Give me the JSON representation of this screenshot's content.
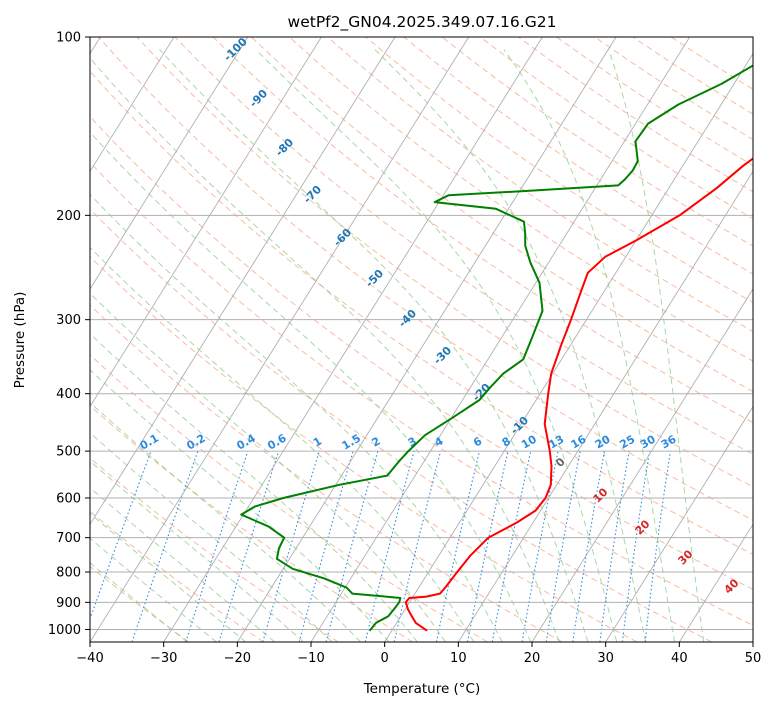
{
  "chart_data": {
    "type": "skew-t",
    "title": "wetPf2_GN04.2025.349.07.16.G21",
    "xlabel": "Temperature (°C)",
    "ylabel": "Pressure (hPa)",
    "xlim": [
      -40,
      50
    ],
    "ylim": [
      1050,
      100
    ],
    "x_ticks": [
      "−40",
      "−30",
      "−20",
      "−10",
      "0",
      "10",
      "20",
      "30",
      "40",
      "50"
    ],
    "y_ticks": [
      {
        "p": 1000,
        "label": "1000"
      },
      {
        "p": 900,
        "label": "900"
      },
      {
        "p": 800,
        "label": "800"
      },
      {
        "p": 700,
        "label": "700"
      },
      {
        "p": 600,
        "label": "600"
      },
      {
        "p": 500,
        "label": "500"
      },
      {
        "p": 400,
        "label": "400"
      },
      {
        "p": 300,
        "label": "300"
      },
      {
        "p": 200,
        "label": "200"
      },
      {
        "p": 100,
        "label": "100"
      }
    ],
    "grid": true,
    "colors": {
      "temperature": "#ff0000",
      "dewpoint": "#008000",
      "isotherm": "#b0b0b0",
      "dry_adiabat": "#f4a582",
      "moist_adiabat": "#8cc98c",
      "mixing_ratio": "#2c8be0",
      "dry_label": "#1f77b4",
      "moist_label": "#d62728"
    },
    "series": [
      {
        "key": "temperature",
        "points": [
          [
            1005,
            4.8
          ],
          [
            975,
            2.6
          ],
          [
            950,
            1.5
          ],
          [
            925,
            0.4
          ],
          [
            900,
            -0.5
          ],
          [
            885,
            -0.4
          ],
          [
            880,
            1.8
          ],
          [
            870,
            3.4
          ],
          [
            850,
            3.6
          ],
          [
            800,
            3.9
          ],
          [
            750,
            4.3
          ],
          [
            700,
            5.2
          ],
          [
            660,
            7.8
          ],
          [
            630,
            9.3
          ],
          [
            600,
            9.6
          ],
          [
            570,
            9.2
          ],
          [
            530,
            7.7
          ],
          [
            500,
            6.2
          ],
          [
            450,
            3.2
          ],
          [
            400,
            1.1
          ],
          [
            370,
            -0.2
          ],
          [
            330,
            -1.3
          ],
          [
            300,
            -2.1
          ],
          [
            270,
            -3.1
          ],
          [
            250,
            -3.8
          ],
          [
            235,
            -2.8
          ],
          [
            220,
            0.1
          ],
          [
            200,
            3.8
          ],
          [
            180,
            6.5
          ],
          [
            165,
            8.2
          ],
          [
            150,
            10.6
          ],
          [
            135,
            14.8
          ],
          [
            125,
            17.2
          ],
          [
            115,
            17.8
          ],
          [
            108,
            19.5
          ],
          [
            100,
            21.8
          ]
        ]
      },
      {
        "key": "dewpoint",
        "points": [
          [
            1005,
            -3.0
          ],
          [
            975,
            -2.8
          ],
          [
            950,
            -1.7
          ],
          [
            920,
            -1.5
          ],
          [
            900,
            -1.4
          ],
          [
            885,
            -1.6
          ],
          [
            880,
            -3.7
          ],
          [
            870,
            -8.5
          ],
          [
            850,
            -9.8
          ],
          [
            820,
            -13.6
          ],
          [
            790,
            -18.7
          ],
          [
            760,
            -21.7
          ],
          [
            730,
            -22.3
          ],
          [
            700,
            -22.5
          ],
          [
            670,
            -25.6
          ],
          [
            640,
            -30.3
          ],
          [
            620,
            -29.1
          ],
          [
            600,
            -26.0
          ],
          [
            570,
            -19.5
          ],
          [
            550,
            -13.8
          ],
          [
            520,
            -13.4
          ],
          [
            500,
            -13.0
          ],
          [
            470,
            -12.1
          ],
          [
            440,
            -9.9
          ],
          [
            410,
            -7.7
          ],
          [
            390,
            -7.3
          ],
          [
            370,
            -6.7
          ],
          [
            350,
            -5.2
          ],
          [
            320,
            -5.9
          ],
          [
            290,
            -6.7
          ],
          [
            260,
            -9.5
          ],
          [
            240,
            -12.5
          ],
          [
            225,
            -14.6
          ],
          [
            215,
            -15.6
          ],
          [
            205,
            -16.8
          ],
          [
            195,
            -21.7
          ],
          [
            190,
            -30.6
          ],
          [
            185,
            -29.3
          ],
          [
            182,
            -19.5
          ],
          [
            178,
            -7.1
          ],
          [
            174,
            -6.7
          ],
          [
            168,
            -6.4
          ],
          [
            162,
            -6.5
          ],
          [
            150,
            -8.5
          ],
          [
            140,
            -8.3
          ],
          [
            130,
            -5.8
          ],
          [
            120,
            -1.7
          ],
          [
            110,
            1.6
          ],
          [
            100,
            4.2
          ]
        ]
      }
    ],
    "dry_adiabat_labels": [
      "-100",
      "-90",
      "-80",
      "-70",
      "-60",
      "-50",
      "-40",
      "-30",
      "-20",
      "-10"
    ],
    "moist_adiabat_labels": [
      "0",
      "10",
      "20",
      "30",
      "40"
    ],
    "mixing_ratio_labels": [
      "0.1",
      "0.2",
      "0.4",
      "0.6",
      "1",
      "1.5",
      "2",
      "3",
      "4",
      "6",
      "8",
      "10",
      "13",
      "16",
      "20",
      "25",
      "30",
      "36"
    ]
  }
}
